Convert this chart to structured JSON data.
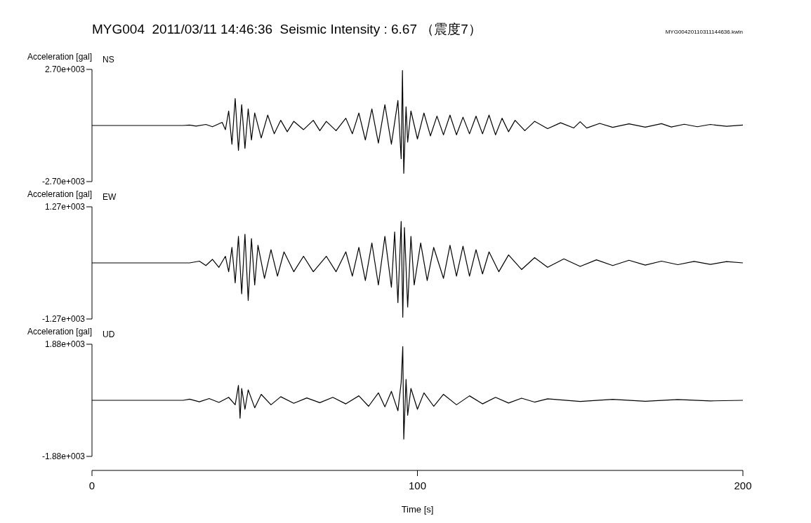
{
  "chart_data": [
    {
      "type": "line",
      "title": "MYG004  2011/03/11 14:46:36  Seismic Intensity : 6.67 （震度7）",
      "subtitle": "NS",
      "ylabel": "Acceleration [gal]",
      "annotations": [
        "MYG00420110311144636.kwin"
      ],
      "xlim": [
        0,
        200
      ],
      "ylim": [
        -2700,
        2700
      ],
      "yticks": [
        {
          "value": -2700,
          "label": "-2.70e+003"
        },
        {
          "value": 2700,
          "label": "2.70e+003"
        }
      ],
      "tick_labels": "y",
      "series": [
        {
          "color": "#000000",
          "x": [
            0,
            28,
            30,
            32,
            35,
            37,
            40,
            41,
            42,
            43,
            44,
            45,
            46,
            47,
            48,
            49,
            50,
            52,
            54,
            56,
            58,
            60,
            62,
            65,
            68,
            70,
            72,
            75,
            78,
            80,
            82,
            84,
            86,
            88,
            90,
            92,
            94,
            95,
            95.4,
            95.8,
            96.5,
            97,
            98,
            100,
            102,
            104,
            106,
            108,
            110,
            112,
            114,
            116,
            118,
            120,
            122,
            124,
            126,
            128,
            130,
            133,
            136,
            140,
            144,
            148,
            150,
            152,
            156,
            160,
            165,
            170,
            175,
            178,
            182,
            186,
            190,
            195,
            200
          ],
          "values": [
            0,
            0,
            20,
            -30,
            50,
            -60,
            150,
            -200,
            700,
            -900,
            1300,
            -1200,
            1000,
            -1100,
            800,
            -700,
            600,
            -600,
            500,
            -400,
            250,
            -300,
            200,
            -200,
            250,
            -250,
            200,
            -250,
            350,
            -400,
            600,
            -700,
            800,
            -850,
            1000,
            -900,
            1200,
            -1600,
            2650,
            -2300,
            900,
            -800,
            700,
            -650,
            600,
            -500,
            450,
            -450,
            500,
            -450,
            400,
            -400,
            450,
            -400,
            500,
            -450,
            350,
            -300,
            250,
            -250,
            200,
            -150,
            130,
            -120,
            180,
            -120,
            100,
            -90,
            80,
            -80,
            90,
            -70,
            60,
            -60,
            50,
            -40,
            20
          ]
        }
      ]
    },
    {
      "type": "line",
      "subtitle": "EW",
      "ylabel": "Acceleration [gal]",
      "xlim": [
        0,
        200
      ],
      "ylim": [
        -1270,
        1270
      ],
      "yticks": [
        {
          "value": -1270,
          "label": "-1.27e+003"
        },
        {
          "value": 1270,
          "label": "1.27e+003"
        }
      ],
      "tick_labels": "y",
      "series": [
        {
          "color": "#000000",
          "x": [
            0,
            30,
            33,
            35,
            37,
            39,
            41,
            42,
            43,
            44,
            45,
            46,
            47,
            48,
            49,
            50,
            51,
            53,
            55,
            57,
            59,
            62,
            65,
            68,
            72,
            75,
            78,
            80,
            82,
            84,
            86,
            88,
            90,
            92,
            93,
            94,
            95,
            95.5,
            96,
            97,
            98,
            99,
            101,
            103,
            105,
            108,
            110,
            112,
            114,
            116,
            118,
            120,
            122,
            125,
            128,
            132,
            136,
            140,
            145,
            150,
            155,
            160,
            165,
            170,
            175,
            180,
            185,
            190,
            195,
            200
          ],
          "values": [
            0,
            0,
            40,
            -60,
            80,
            -100,
            150,
            -200,
            350,
            -450,
            600,
            -700,
            650,
            -850,
            550,
            -500,
            400,
            -350,
            300,
            -300,
            250,
            -200,
            150,
            -200,
            150,
            -200,
            250,
            -300,
            350,
            -400,
            450,
            -500,
            600,
            -550,
            700,
            -900,
            940,
            -1230,
            800,
            -1000,
            600,
            -500,
            450,
            -400,
            350,
            -350,
            400,
            -300,
            380,
            -300,
            300,
            -250,
            250,
            -200,
            180,
            -150,
            120,
            -100,
            90,
            -80,
            70,
            -60,
            60,
            -50,
            40,
            -40,
            35,
            -35,
            30,
            0
          ]
        }
      ]
    },
    {
      "type": "line",
      "subtitle": "UD",
      "ylabel": "Acceleration [gal]",
      "xlabel": "Time [s]",
      "xlim": [
        0,
        200
      ],
      "xticks": [
        0,
        100,
        200
      ],
      "ylim": [
        -1880,
        1880
      ],
      "yticks": [
        {
          "value": -1880,
          "label": "-1.88e+003"
        },
        {
          "value": 1880,
          "label": "1.88e+003"
        }
      ],
      "series": [
        {
          "color": "#000000",
          "x": [
            0,
            28,
            30,
            33,
            36,
            39,
            42,
            44,
            45,
            45.5,
            46,
            47,
            48,
            50,
            52,
            55,
            58,
            62,
            66,
            70,
            74,
            78,
            82,
            85,
            88,
            90,
            92,
            94,
            95,
            95.5,
            95.8,
            96.5,
            97,
            98,
            100,
            102,
            105,
            108,
            112,
            116,
            120,
            124,
            128,
            132,
            136,
            140,
            150,
            160,
            170,
            180,
            190,
            200
          ],
          "values": [
            0,
            0,
            40,
            -50,
            60,
            -70,
            100,
            -150,
            500,
            -600,
            400,
            -300,
            350,
            -250,
            200,
            -150,
            120,
            -100,
            80,
            -80,
            100,
            -120,
            150,
            -200,
            250,
            -220,
            300,
            -350,
            600,
            1800,
            -1300,
            700,
            -500,
            400,
            -300,
            250,
            -200,
            200,
            -150,
            150,
            -120,
            100,
            -90,
            70,
            -60,
            50,
            -40,
            30,
            -30,
            25,
            -20,
            0
          ]
        }
      ]
    }
  ]
}
